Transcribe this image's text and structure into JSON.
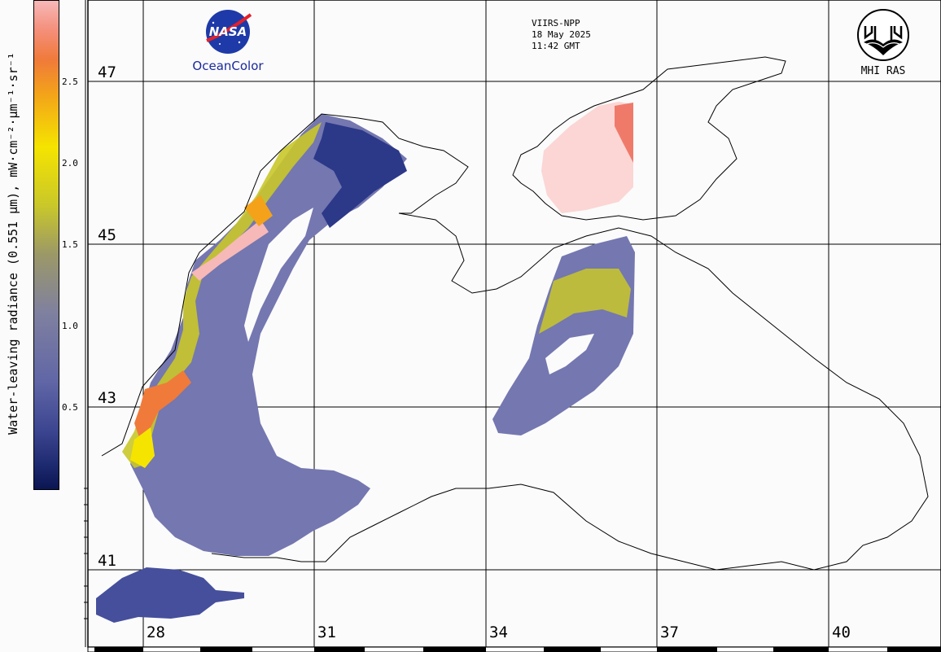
{
  "header": {
    "satellite": "VIIRS-NPP",
    "date": "18 May 2025",
    "time": "11:42 GMT"
  },
  "logos": {
    "nasa_word": "NASA",
    "nasa_label": "OceanColor",
    "mhi_label": "MHI RAS"
  },
  "colorbar": {
    "title": "Water-leaving radiance (0.551 μm), mW·cm⁻²·μm⁻¹·sr⁻¹",
    "ticks": [
      "2.5",
      "2.0",
      "1.5",
      "1.0",
      "0.5"
    ],
    "colors": [
      "#0a1552",
      "#3c4590",
      "#6066a6",
      "#7f80a0",
      "#9b9868",
      "#c9c72a",
      "#f5e400",
      "#f3a21a",
      "#f07a3a",
      "#f7b8b8"
    ]
  },
  "grid": {
    "lat_labels": [
      "47",
      "45",
      "43",
      "41"
    ],
    "lon_labels": [
      "28",
      "31",
      "34",
      "37",
      "40"
    ]
  },
  "colors": {
    "cloud_mask": "#fbd6d4",
    "clear_water": "#7477b0",
    "coast": "#000000"
  }
}
